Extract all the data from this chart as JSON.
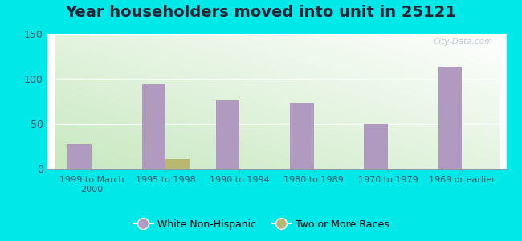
{
  "title": "Year householders moved into unit in 25121",
  "categories": [
    "1999 to March\n2000",
    "1995 to 1998",
    "1990 to 1994",
    "1980 to 1989",
    "1970 to 1979",
    "1969 or earlier"
  ],
  "white_non_hispanic": [
    28,
    94,
    76,
    73,
    50,
    113
  ],
  "two_or_more_races": [
    0,
    11,
    0,
    0,
    0,
    0
  ],
  "bar_color_white": "#b09ac0",
  "bar_color_two": "#b8b870",
  "ylim": [
    0,
    150
  ],
  "yticks": [
    0,
    50,
    100,
    150
  ],
  "outer_bg": "#00e8e8",
  "title_fontsize": 14,
  "legend_labels": [
    "White Non-Hispanic",
    "Two or More Races"
  ],
  "watermark": "City-Data.com"
}
